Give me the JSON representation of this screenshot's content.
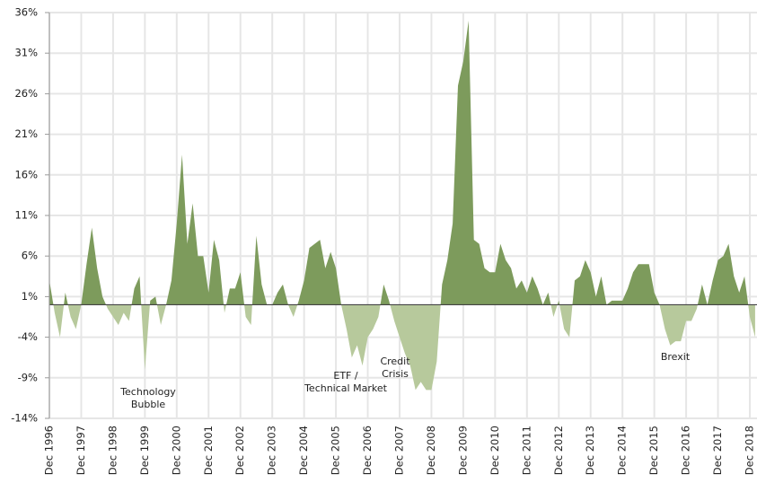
{
  "chart_data": {
    "type": "area",
    "categories": [
      "Dec 1996",
      null,
      null,
      null,
      null,
      null,
      "Dec 1997",
      null,
      null,
      null,
      null,
      null,
      "Dec 1998",
      null,
      null,
      null,
      null,
      null,
      "Dec 1999",
      null,
      null,
      null,
      null,
      null,
      "Dec 2000",
      null,
      null,
      null,
      null,
      null,
      "Dec 2001",
      null,
      null,
      null,
      null,
      null,
      "Dec 2002",
      null,
      null,
      null,
      null,
      null,
      "Dec 2003",
      null,
      null,
      null,
      null,
      null,
      "Dec 2004",
      null,
      null,
      null,
      null,
      null,
      "Dec 2005",
      null,
      null,
      null,
      null,
      null,
      "Dec 2006",
      null,
      null,
      null,
      null,
      null,
      "Dec 2007",
      null,
      null,
      null,
      null,
      null,
      "Dec 2008",
      null,
      null,
      null,
      null,
      null,
      "Dec 2009",
      null,
      null,
      null,
      null,
      null,
      "Dec 2010",
      null,
      null,
      null,
      null,
      null,
      "Dec 2011",
      null,
      null,
      null,
      null,
      null,
      "Dec 2012",
      null,
      null,
      null,
      null,
      null,
      "Dec 2013",
      null,
      null,
      null,
      null,
      null,
      "Dec 2014",
      null,
      null,
      null,
      null,
      null,
      "Dec 2015",
      null,
      null,
      null,
      null,
      null,
      "Dec 2016",
      null,
      null,
      null,
      null,
      null,
      "Dec 2017",
      null,
      null,
      null,
      null,
      null,
      "Dec 2018",
      null
    ],
    "values": [
      3,
      -1,
      -4,
      1.5,
      -1.5,
      -3,
      0,
      5,
      9.5,
      4.5,
      1,
      -0.5,
      -1.5,
      -2.5,
      -1,
      -2,
      2,
      3.5,
      -8,
      0.5,
      1,
      -2.5,
      0,
      3,
      10,
      18.5,
      7.5,
      12.5,
      6,
      6,
      1.5,
      8,
      5.5,
      -1,
      2,
      2,
      4,
      -1.5,
      -2.5,
      8.5,
      2.5,
      0,
      0,
      1.5,
      2.5,
      0,
      -1.5,
      0.5,
      3,
      7,
      7.5,
      8,
      4.5,
      6.5,
      4.5,
      0,
      -3,
      -6.5,
      -5,
      -7.5,
      -4,
      -3,
      -1.5,
      2.5,
      0.5,
      -2,
      -4,
      -6,
      -7.5,
      -10.5,
      -9.5,
      -10.5,
      -10.5,
      -7,
      2.5,
      5.5,
      10,
      27,
      30,
      35,
      8,
      7.5,
      4.5,
      4,
      4,
      7.5,
      5.5,
      4.5,
      2,
      3,
      1.5,
      3.5,
      2,
      0,
      1.5,
      -1.5,
      0.5,
      -3,
      -4,
      3,
      3.5,
      5.5,
      4,
      1,
      3.5,
      0,
      0.5,
      0.5,
      0.5,
      2,
      4,
      5,
      5,
      5,
      1.5,
      0,
      -3,
      -5,
      -4.5,
      -4.5,
      -2,
      -2,
      -0.5,
      2.5,
      0,
      3,
      5.5,
      6,
      7.5,
      3.5,
      1.5,
      3.5,
      -1.5,
      -4
    ],
    "positive_color": "#7d9b5c",
    "negative_color": "#b7c99c",
    "ylim": [
      -14,
      36
    ],
    "yticks": [
      {
        "value": -14,
        "label": "-14%"
      },
      {
        "value": -9,
        "label": "-9%"
      },
      {
        "value": -4,
        "label": "-4%"
      },
      {
        "value": 1,
        "label": "1%"
      },
      {
        "value": 6,
        "label": "6%"
      },
      {
        "value": 11,
        "label": "11%"
      },
      {
        "value": 16,
        "label": "16%"
      },
      {
        "value": 21,
        "label": "21%"
      },
      {
        "value": 26,
        "label": "26%"
      },
      {
        "value": 31,
        "label": "31%"
      },
      {
        "value": 36,
        "label": "36%"
      }
    ],
    "grid": true,
    "annotations": [
      {
        "lines": [
          "Technology",
          "Bubble"
        ]
      },
      {
        "lines": [
          "ETF /",
          "Technical Market"
        ]
      },
      {
        "lines": [
          "Credit",
          "Crisis"
        ]
      },
      {
        "lines": [
          "Brexit"
        ]
      }
    ]
  }
}
